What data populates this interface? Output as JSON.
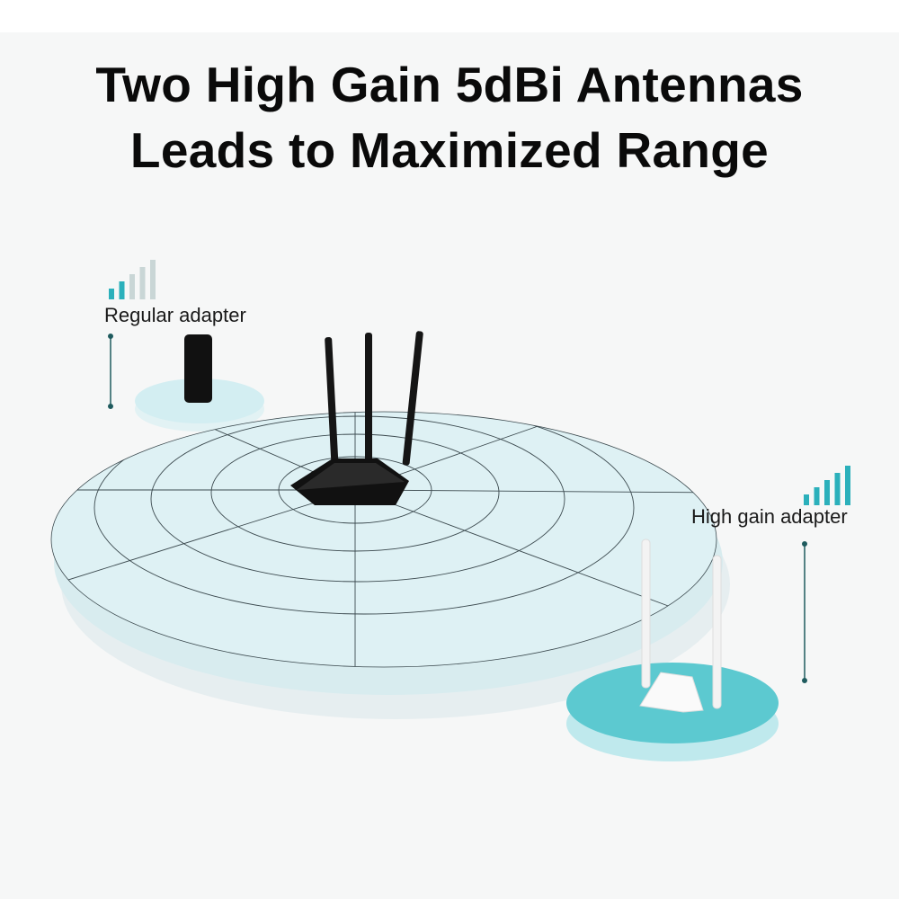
{
  "header": {
    "title_line1": "Two High Gain 5dBi Antennas",
    "title_line2": "Leads to Maximized Range"
  },
  "regular_adapter": {
    "label": "Regular adapter",
    "signal_bars_active": 2,
    "signal_bars_total": 5,
    "icon": "signal-bars-icon"
  },
  "high_gain_adapter": {
    "label": "High gain adapter",
    "signal_bars_active": 5,
    "signal_bars_total": 5,
    "icon": "signal-bars-icon"
  },
  "colors": {
    "accent": "#2bb0bb",
    "inactive_bar": "#c9d6d6",
    "coverage_disc": "#dff1f4",
    "high_gain_disc": "#5cc9d0",
    "text": "#0a0a0a"
  }
}
